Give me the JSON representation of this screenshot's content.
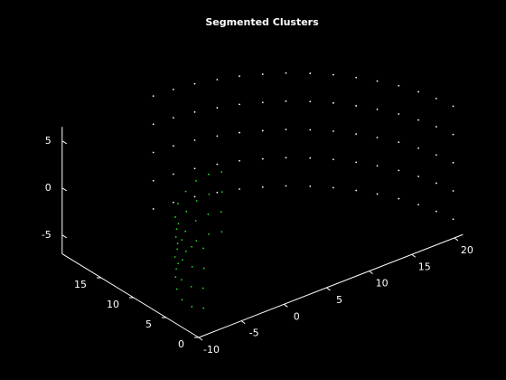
{
  "chart_data": {
    "type": "scatter3d",
    "title": "Segmented Clusters",
    "xlim": [
      -10,
      21
    ],
    "ylim": [
      0,
      21
    ],
    "zlim": [
      -7,
      6.5
    ],
    "xticks": [
      -10,
      -5,
      0,
      5,
      10,
      15,
      20
    ],
    "yticks": [
      0,
      5,
      10,
      15
    ],
    "zticks": [
      -5,
      0,
      5
    ],
    "grid": false,
    "series": [
      {
        "color": "#ffffff",
        "x": [
          0.7,
          2.9,
          5.1,
          7.2,
          9.2,
          11.1,
          12.9,
          14.6,
          16.1,
          17.4,
          18.5,
          19.5,
          20.2,
          20.7,
          21.0,
          0.7,
          2.9,
          5.1,
          7.2,
          9.2,
          11.1,
          12.9,
          14.6,
          16.1,
          17.4,
          18.5,
          19.5,
          20.2,
          20.7,
          21.0,
          0.7,
          2.9,
          5.1,
          7.2,
          9.2,
          11.1,
          12.9,
          14.6,
          16.1,
          17.4,
          18.5,
          19.5,
          20.2,
          20.7,
          21.0,
          0.7,
          2.9,
          5.1,
          7.2,
          9.2,
          11.1,
          12.9,
          14.6,
          16.1,
          17.4,
          18.5,
          19.5,
          20.2,
          20.7,
          21.0,
          0.7,
          2.9,
          5.1,
          7.2,
          9.2,
          11.1,
          12.9,
          14.6,
          16.1,
          17.4,
          18.5,
          19.5,
          20.2,
          20.7,
          21.0
        ],
        "y": [
          21.0,
          20.8,
          20.4,
          19.7,
          18.9,
          17.8,
          16.6,
          15.1,
          13.5,
          11.7,
          9.9,
          7.9,
          5.8,
          3.7,
          1.5,
          21.0,
          20.8,
          20.4,
          19.7,
          18.9,
          17.8,
          16.6,
          15.1,
          13.5,
          11.7,
          9.9,
          7.9,
          5.8,
          3.7,
          1.5,
          21.0,
          20.8,
          20.4,
          19.7,
          18.9,
          17.8,
          16.6,
          15.1,
          13.5,
          11.7,
          9.9,
          7.9,
          5.8,
          3.7,
          1.5,
          21.0,
          20.8,
          20.4,
          19.7,
          18.9,
          17.8,
          16.6,
          15.1,
          13.5,
          11.7,
          9.9,
          7.9,
          5.8,
          3.7,
          1.5,
          21.0,
          20.8,
          20.4,
          19.7,
          18.9,
          17.8,
          16.6,
          15.1,
          13.5,
          11.7,
          9.9,
          7.9,
          5.8,
          3.7,
          1.5
        ],
        "z": [
          -6,
          -6,
          -6,
          -6,
          -6,
          -6,
          -6,
          -6,
          -6,
          -6,
          -6,
          -6,
          -6,
          -6,
          -6,
          -3,
          -3,
          -3,
          -3,
          -3,
          -3,
          -3,
          -3,
          -3,
          -3,
          -3,
          -3,
          -3,
          -3,
          -3,
          0,
          0,
          0,
          0,
          0,
          0,
          0,
          0,
          0,
          0,
          0,
          0,
          0,
          0,
          0,
          3,
          3,
          3,
          3,
          3,
          3,
          3,
          3,
          3,
          3,
          3,
          3,
          3,
          3,
          3,
          6,
          6,
          6,
          6,
          6,
          6,
          6,
          6,
          6,
          6,
          6,
          6,
          6,
          6,
          6
        ]
      },
      {
        "color": "#22dd22",
        "x": [
          0,
          0,
          0,
          0,
          0,
          0,
          0,
          0,
          0,
          0,
          -2.3,
          -2.3,
          -2.3,
          -2.3,
          -2.3,
          -2.3,
          -2.3,
          -2.3,
          -2.3,
          -2.3,
          -4.7,
          -4.7,
          -4.7,
          -4.7,
          -4.7,
          -4.7,
          -4.7,
          -4.7,
          -4.7,
          -4.7,
          -7.0,
          -7.0,
          -7.0,
          -7.0,
          -7.0,
          -7.0,
          -7.0,
          -7.0,
          -7.0,
          -7.0
        ],
        "y": [
          9.6,
          11.6,
          13.5,
          15.1,
          16.3,
          16.7,
          16.5,
          15.7,
          14.2,
          12.4,
          6.5,
          8.5,
          10.4,
          12.0,
          13.2,
          13.6,
          13.4,
          12.6,
          11.1,
          9.3,
          3.5,
          5.5,
          7.4,
          9.0,
          10.2,
          10.6,
          10.4,
          9.6,
          8.1,
          6.3,
          0.4,
          2.4,
          4.3,
          5.9,
          7.1,
          7.5,
          7.3,
          6.5,
          5.0,
          3.2
        ],
        "z": [
          3.0,
          1.9,
          0.4,
          -1.4,
          -3.2,
          -4.8,
          -6.0,
          -6.8,
          -6.9,
          -6.3,
          3.0,
          1.9,
          0.4,
          -1.4,
          -3.2,
          -4.8,
          -6.0,
          -6.8,
          -6.9,
          -6.3,
          3.0,
          1.9,
          0.4,
          -1.4,
          -3.2,
          -4.8,
          -6.0,
          -6.8,
          -6.9,
          -6.3,
          3.0,
          1.9,
          0.4,
          -1.4,
          -3.2,
          -4.8,
          -6.0,
          -6.8,
          -6.9,
          -6.3
        ]
      }
    ]
  }
}
